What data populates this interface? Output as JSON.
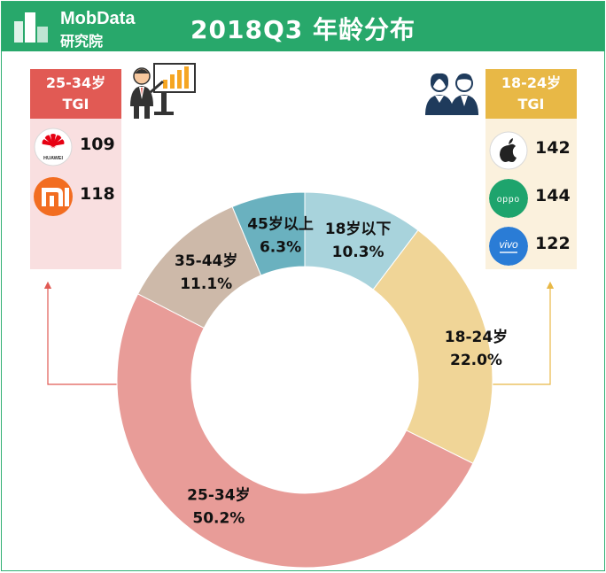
{
  "header": {
    "logo_name": "MobData",
    "logo_sub": "研究院",
    "title": "2018Q3   年龄分布",
    "color": "#28a86b"
  },
  "left_panel": {
    "title_line1": "25-34岁",
    "title_line2": "TGI",
    "icon": "teacher-presenting-chart-icon",
    "brands": [
      {
        "name": "HUAWEI",
        "icon": "huawei-logo-icon",
        "value": "109"
      },
      {
        "name": "Xiaomi",
        "icon": "xiaomi-logo-icon",
        "value": "118"
      }
    ]
  },
  "right_panel": {
    "title_line1": "18-24岁",
    "title_line2": "TGI",
    "icon": "young-people-icon",
    "brands": [
      {
        "name": "Apple",
        "icon": "apple-logo-icon",
        "value": "142"
      },
      {
        "name": "OPPO",
        "icon": "oppo-logo-icon",
        "value": "144"
      },
      {
        "name": "vivo",
        "icon": "vivo-logo-icon",
        "value": "122"
      }
    ]
  },
  "chart_data": {
    "type": "pie",
    "donut": true,
    "title": "2018Q3   年龄分布",
    "slices": [
      {
        "label": "18岁以下",
        "value": 10.3,
        "display": "10.3%",
        "color": "#a8d3dc"
      },
      {
        "label": "18-24岁",
        "value": 22.0,
        "display": "22.0%",
        "color": "#f0d597"
      },
      {
        "label": "25-34岁",
        "value": 50.2,
        "display": "50.2%",
        "color": "#e89c98"
      },
      {
        "label": "35-44岁",
        "value": 11.1,
        "display": "11.1%",
        "color": "#cdb9a9"
      },
      {
        "label": "45岁以上",
        "value": 6.3,
        "display": "6.3%",
        "color": "#6ab1bf"
      }
    ]
  }
}
